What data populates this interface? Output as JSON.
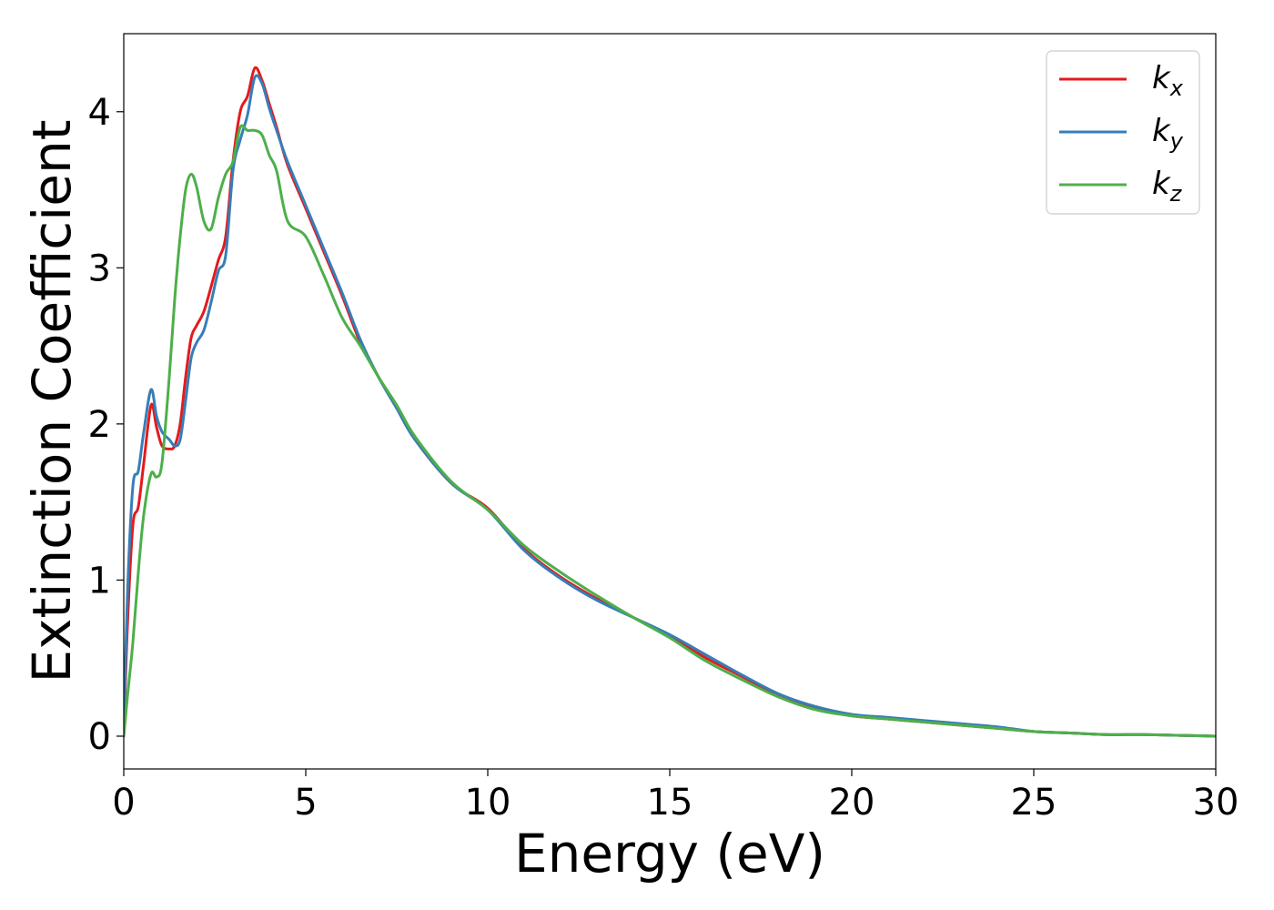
{
  "chart_data": {
    "type": "line",
    "xlabel": "Energy (eV)",
    "ylabel": "Extinction Coefficient",
    "xlim": [
      0,
      30
    ],
    "ylim": [
      -0.21,
      4.5
    ],
    "xticks": [
      0,
      5,
      10,
      15,
      20,
      25,
      30
    ],
    "yticks": [
      0,
      1,
      2,
      3,
      4
    ],
    "grid": false,
    "legend": "top-right",
    "series": [
      {
        "name": "k",
        "subscript": "x",
        "color": "#e41a1c",
        "x": [
          0,
          0.1,
          0.25,
          0.4,
          0.55,
          0.75,
          0.9,
          1.05,
          1.25,
          1.4,
          1.55,
          1.7,
          1.85,
          2.0,
          2.2,
          2.4,
          2.6,
          2.8,
          3.0,
          3.2,
          3.4,
          3.6,
          3.8,
          4.0,
          4.2,
          4.5,
          5.0,
          5.5,
          6.0,
          6.5,
          7.0,
          7.5,
          8.0,
          9.0,
          10.0,
          11.0,
          12.0,
          13.0,
          14.0,
          15.0,
          16.0,
          17.0,
          18.0,
          19.0,
          20.0,
          21.0,
          22.0,
          23.0,
          24.0,
          25.0,
          26.0,
          27.0,
          28.0,
          29.0,
          30.0
        ],
        "y": [
          0,
          0.7,
          1.35,
          1.47,
          1.75,
          2.12,
          1.98,
          1.86,
          1.84,
          1.86,
          2.0,
          2.3,
          2.55,
          2.63,
          2.72,
          2.88,
          3.05,
          3.2,
          3.68,
          4.0,
          4.1,
          4.28,
          4.2,
          4.05,
          3.9,
          3.66,
          3.38,
          3.1,
          2.82,
          2.52,
          2.3,
          2.1,
          1.9,
          1.62,
          1.46,
          1.2,
          1.02,
          0.88,
          0.76,
          0.64,
          0.5,
          0.38,
          0.26,
          0.18,
          0.13,
          0.11,
          0.09,
          0.07,
          0.05,
          0.03,
          0.02,
          0.01,
          0.01,
          0.005,
          0.0
        ]
      },
      {
        "name": "k",
        "subscript": "y",
        "color": "#377eb8",
        "x": [
          0,
          0.1,
          0.25,
          0.4,
          0.55,
          0.75,
          0.9,
          1.05,
          1.25,
          1.4,
          1.55,
          1.7,
          1.85,
          2.0,
          2.2,
          2.4,
          2.6,
          2.8,
          3.0,
          3.2,
          3.4,
          3.6,
          3.8,
          4.0,
          4.2,
          4.5,
          5.0,
          5.5,
          6.0,
          6.5,
          7.0,
          7.5,
          8.0,
          9.0,
          10.0,
          11.0,
          12.0,
          13.0,
          14.0,
          15.0,
          16.0,
          17.0,
          18.0,
          19.0,
          20.0,
          21.0,
          22.0,
          23.0,
          24.0,
          25.0,
          26.0,
          27.0,
          28.0,
          29.0,
          30.0
        ],
        "y": [
          0,
          0.9,
          1.6,
          1.7,
          1.95,
          2.22,
          2.05,
          1.95,
          1.9,
          1.86,
          1.9,
          2.15,
          2.42,
          2.52,
          2.6,
          2.78,
          2.98,
          3.08,
          3.62,
          3.82,
          3.98,
          4.22,
          4.18,
          4.02,
          3.88,
          3.68,
          3.4,
          3.12,
          2.84,
          2.54,
          2.3,
          2.1,
          1.9,
          1.62,
          1.45,
          1.19,
          1.01,
          0.87,
          0.76,
          0.65,
          0.52,
          0.39,
          0.27,
          0.19,
          0.14,
          0.12,
          0.1,
          0.08,
          0.06,
          0.03,
          0.02,
          0.01,
          0.01,
          0.005,
          0.0
        ]
      },
      {
        "name": "k",
        "subscript": "z",
        "color": "#4daf4a",
        "x": [
          0,
          0.1,
          0.25,
          0.4,
          0.55,
          0.75,
          0.9,
          1.05,
          1.25,
          1.4,
          1.55,
          1.7,
          1.85,
          2.0,
          2.2,
          2.4,
          2.6,
          2.8,
          3.0,
          3.2,
          3.4,
          3.6,
          3.8,
          4.0,
          4.2,
          4.5,
          5.0,
          5.5,
          6.0,
          6.5,
          7.0,
          7.5,
          8.0,
          9.0,
          10.0,
          11.0,
          12.0,
          13.0,
          14.0,
          15.0,
          16.0,
          17.0,
          18.0,
          19.0,
          20.0,
          21.0,
          22.0,
          23.0,
          24.0,
          25.0,
          26.0,
          27.0,
          28.0,
          29.0,
          30.0
        ],
        "y": [
          0,
          0.25,
          0.6,
          1.05,
          1.42,
          1.68,
          1.66,
          1.75,
          2.3,
          2.8,
          3.2,
          3.5,
          3.6,
          3.52,
          3.3,
          3.25,
          3.45,
          3.6,
          3.68,
          3.9,
          3.88,
          3.88,
          3.85,
          3.72,
          3.62,
          3.3,
          3.2,
          2.95,
          2.68,
          2.5,
          2.3,
          2.12,
          1.92,
          1.63,
          1.45,
          1.22,
          1.05,
          0.9,
          0.76,
          0.63,
          0.48,
          0.36,
          0.25,
          0.17,
          0.13,
          0.11,
          0.09,
          0.07,
          0.05,
          0.03,
          0.02,
          0.01,
          0.01,
          0.005,
          0.0
        ]
      }
    ]
  }
}
